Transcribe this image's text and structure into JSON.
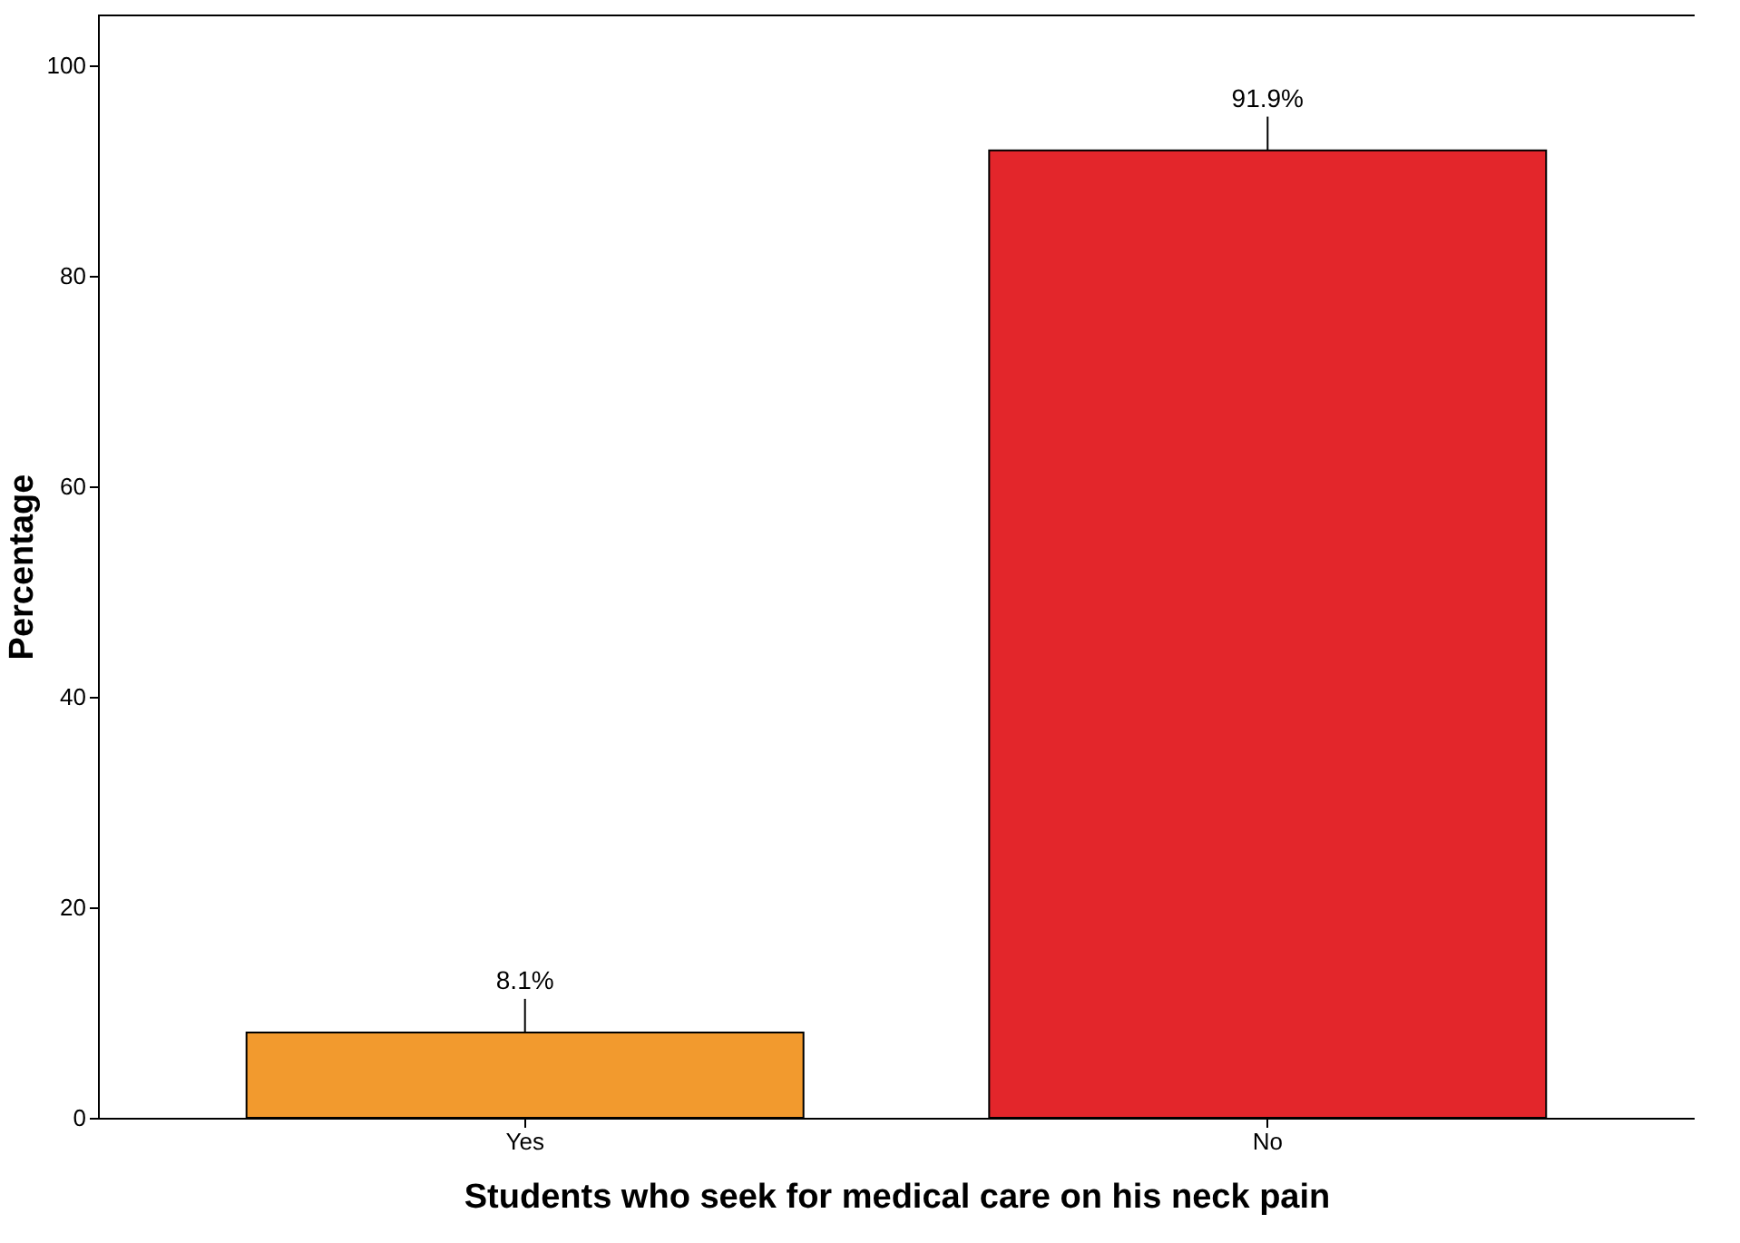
{
  "chart_data": {
    "type": "bar",
    "xlabel": "Students who seek for medical care on his neck pain",
    "ylabel": "Percentage",
    "categories": [
      "Yes",
      "No"
    ],
    "values": [
      8.1,
      91.9
    ],
    "colors": [
      "#f29a2e",
      "#e3262b"
    ],
    "value_labels": [
      "8.1%",
      "91.9%"
    ],
    "ylim": [
      0,
      104.8
    ],
    "yticks": [
      0,
      20,
      40,
      60,
      80,
      100
    ],
    "grid": false
  }
}
